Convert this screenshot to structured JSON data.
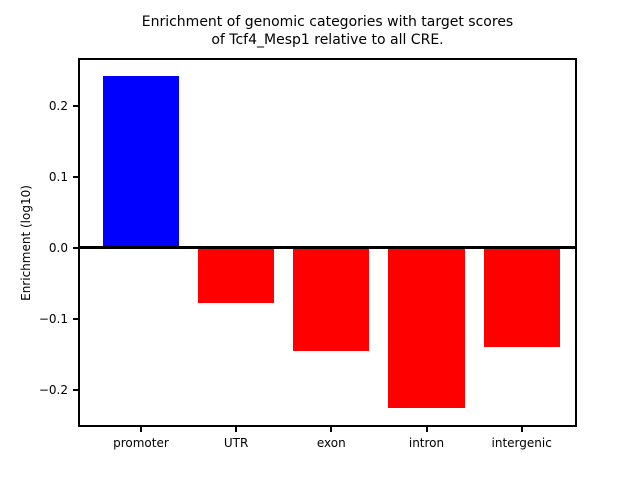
{
  "title": {
    "line1": "Enrichment of genomic categories with target scores",
    "line2": "of Tcf4_Mesp1 relative to all CRE."
  },
  "chart_data": {
    "type": "bar",
    "title": "Enrichment of genomic categories with target scores\nof Tcf4_Mesp1 relative to all CRE.",
    "categories": [
      "promoter",
      "UTR",
      "exon",
      "intron",
      "intergenic"
    ],
    "values": [
      0.242,
      -0.077,
      -0.145,
      -0.225,
      -0.14
    ],
    "bar_colors": [
      "#0000ff",
      "#ff0000",
      "#ff0000",
      "#ff0000",
      "#ff0000"
    ],
    "positive_color": "#0000ff",
    "negative_color": "#ff0000",
    "xlabel": "",
    "ylabel": "Enrichment (log10)",
    "ylim": [
      -0.249,
      0.264
    ],
    "yticks": [
      0.2,
      0.1,
      0.0,
      -0.1,
      -0.2
    ],
    "ytick_labels": [
      "0.2",
      "0.1",
      "0.0",
      "−0.1",
      "−0.2"
    ],
    "zero_line": true,
    "grid": false,
    "legend": null,
    "axis_color": "#000000",
    "background_color": "#ffffff"
  }
}
